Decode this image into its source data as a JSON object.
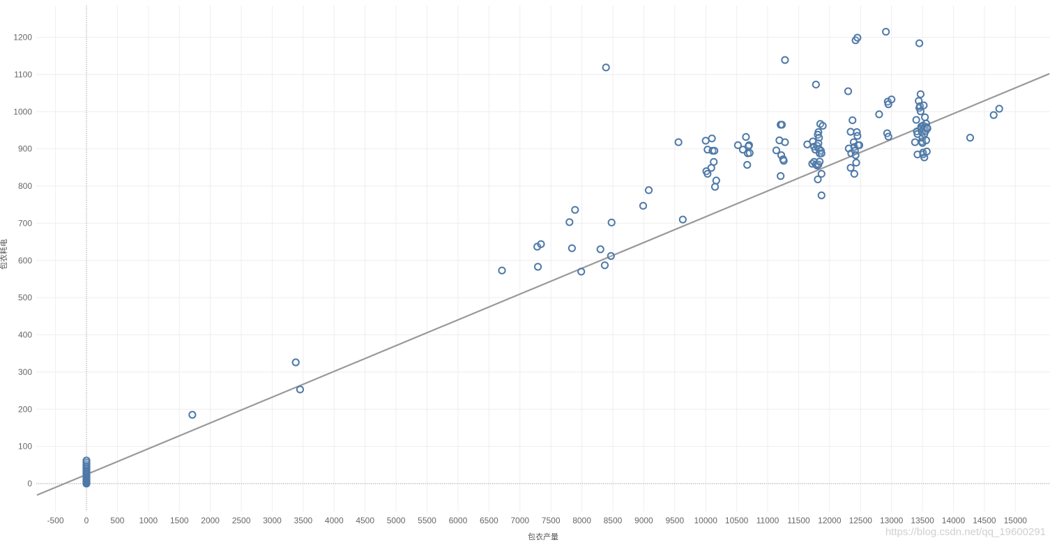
{
  "chart_data": {
    "type": "scatter",
    "xlabel": "包衣产量",
    "ylabel": "包衣耗电",
    "xlim": [
      -800,
      15550
    ],
    "ylim": [
      -80,
      1280
    ],
    "x_ticks": [
      -500,
      0,
      500,
      1000,
      1500,
      2000,
      2500,
      3000,
      3500,
      4000,
      4500,
      5000,
      5500,
      6000,
      6500,
      7000,
      7500,
      8000,
      8500,
      9000,
      9500,
      10000,
      10500,
      11000,
      11500,
      12000,
      12500,
      13000,
      13500,
      14000,
      14500,
      15000
    ],
    "y_ticks": [
      0,
      100,
      200,
      300,
      400,
      500,
      600,
      700,
      800,
      900,
      1000,
      1100,
      1200
    ],
    "grid": true,
    "marker_color": "#4e79a7",
    "trend_color": "#999999",
    "trend_line": {
      "slope": 0.0693,
      "intercept": 24.5
    },
    "points": [
      [
        0,
        0
      ],
      [
        0,
        3
      ],
      [
        0,
        6
      ],
      [
        0,
        9
      ],
      [
        0,
        12
      ],
      [
        0,
        15
      ],
      [
        0,
        18
      ],
      [
        0,
        21
      ],
      [
        0,
        24
      ],
      [
        0,
        27
      ],
      [
        0,
        30
      ],
      [
        0,
        33
      ],
      [
        0,
        36
      ],
      [
        0,
        40
      ],
      [
        0,
        44
      ],
      [
        0,
        48
      ],
      [
        0,
        52
      ],
      [
        0,
        57
      ],
      [
        0,
        62
      ],
      [
        1710,
        185
      ],
      [
        3380,
        326
      ],
      [
        3450,
        253
      ],
      [
        6710,
        573
      ],
      [
        7280,
        637
      ],
      [
        7340,
        644
      ],
      [
        7290,
        583
      ],
      [
        7800,
        703
      ],
      [
        7840,
        633
      ],
      [
        7890,
        736
      ],
      [
        7990,
        570
      ],
      [
        8300,
        630
      ],
      [
        8370,
        587
      ],
      [
        8470,
        612
      ],
      [
        8390,
        1119
      ],
      [
        8480,
        702
      ],
      [
        8990,
        747
      ],
      [
        9080,
        789
      ],
      [
        9560,
        918
      ],
      [
        9630,
        710
      ],
      [
        10000,
        922
      ],
      [
        10030,
        898
      ],
      [
        10100,
        928
      ],
      [
        10110,
        895
      ],
      [
        10140,
        895
      ],
      [
        10130,
        865
      ],
      [
        10090,
        849
      ],
      [
        10010,
        840
      ],
      [
        10030,
        833
      ],
      [
        10170,
        815
      ],
      [
        10150,
        798
      ],
      [
        10520,
        910
      ],
      [
        10600,
        898
      ],
      [
        10650,
        932
      ],
      [
        10680,
        888
      ],
      [
        10700,
        910
      ],
      [
        10690,
        907
      ],
      [
        10710,
        889
      ],
      [
        10670,
        857
      ],
      [
        11140,
        896
      ],
      [
        11190,
        923
      ],
      [
        11210,
        965
      ],
      [
        11230,
        965
      ],
      [
        11220,
        883
      ],
      [
        11250,
        872
      ],
      [
        11260,
        868
      ],
      [
        11280,
        918
      ],
      [
        11210,
        827
      ],
      [
        11280,
        1139
      ],
      [
        11640,
        912
      ],
      [
        11730,
        920
      ],
      [
        11750,
        906
      ],
      [
        11770,
        898
      ],
      [
        11780,
        1073
      ],
      [
        11800,
        908
      ],
      [
        11820,
        945
      ],
      [
        11810,
        938
      ],
      [
        11830,
        930
      ],
      [
        11820,
        915
      ],
      [
        11830,
        900
      ],
      [
        11850,
        967
      ],
      [
        11840,
        888
      ],
      [
        11860,
        895
      ],
      [
        11870,
        888
      ],
      [
        11890,
        962
      ],
      [
        11720,
        860
      ],
      [
        11750,
        865
      ],
      [
        11780,
        858
      ],
      [
        11800,
        855
      ],
      [
        11820,
        858
      ],
      [
        11840,
        866
      ],
      [
        11810,
        818
      ],
      [
        11870,
        833
      ],
      [
        11870,
        775
      ],
      [
        12300,
        1055
      ],
      [
        12310,
        901
      ],
      [
        12340,
        946
      ],
      [
        12350,
        888
      ],
      [
        12370,
        977
      ],
      [
        12390,
        918
      ],
      [
        12400,
        905
      ],
      [
        12410,
        895
      ],
      [
        12420,
        883
      ],
      [
        12430,
        863
      ],
      [
        12440,
        945
      ],
      [
        12450,
        935
      ],
      [
        12460,
        910
      ],
      [
        12480,
        910
      ],
      [
        12340,
        849
      ],
      [
        12400,
        833
      ],
      [
        12420,
        1192
      ],
      [
        12450,
        1199
      ],
      [
        12800,
        993
      ],
      [
        12910,
        1215
      ],
      [
        12930,
        942
      ],
      [
        12940,
        1027
      ],
      [
        12950,
        1020
      ],
      [
        12950,
        933
      ],
      [
        13000,
        1033
      ],
      [
        13380,
        918
      ],
      [
        13400,
        978
      ],
      [
        13410,
        947
      ],
      [
        13420,
        940
      ],
      [
        13420,
        885
      ],
      [
        13440,
        1029
      ],
      [
        13450,
        1010
      ],
      [
        13450,
        1184
      ],
      [
        13460,
        1015
      ],
      [
        13470,
        1047
      ],
      [
        13470,
        1001
      ],
      [
        13480,
        960
      ],
      [
        13480,
        955
      ],
      [
        13490,
        945
      ],
      [
        13490,
        920
      ],
      [
        13500,
        930
      ],
      [
        13500,
        916
      ],
      [
        13510,
        963
      ],
      [
        13510,
        885
      ],
      [
        13510,
        890
      ],
      [
        13520,
        1017
      ],
      [
        13520,
        952
      ],
      [
        13530,
        940
      ],
      [
        13530,
        877
      ],
      [
        13540,
        985
      ],
      [
        13540,
        960
      ],
      [
        13550,
        948
      ],
      [
        13560,
        968
      ],
      [
        13560,
        923
      ],
      [
        13570,
        958
      ],
      [
        13570,
        893
      ],
      [
        13580,
        955
      ],
      [
        14270,
        930
      ],
      [
        14650,
        991
      ],
      [
        14740,
        1008
      ]
    ]
  },
  "watermark": "https://blog.csdn.net/qq_19600291"
}
